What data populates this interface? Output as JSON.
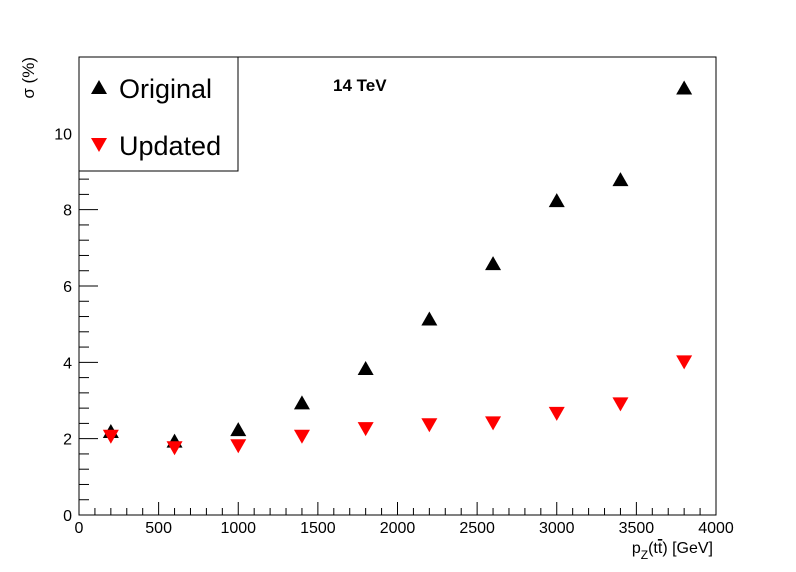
{
  "chart_data": {
    "type": "scatter",
    "annotation": "14 TeV",
    "xlabel": {
      "main": "p",
      "sub": "Z",
      "paren": "(t",
      "tbar": "t",
      "rest": ") [GeV]"
    },
    "ylabel": "σ (%)",
    "xlim": [
      0,
      4000
    ],
    "ylim": [
      0,
      12
    ],
    "xticks": [
      0,
      500,
      1000,
      1500,
      2000,
      2500,
      3000,
      3500,
      4000
    ],
    "xtick_labels": [
      "0",
      "500",
      "1000",
      "1500",
      "2000",
      "2500",
      "3000",
      "3500",
      "4000"
    ],
    "yticks": [
      0,
      2,
      4,
      6,
      8,
      10
    ],
    "ytick_labels": [
      "0",
      "2",
      "4",
      "6",
      "8",
      "10"
    ],
    "grid": false,
    "legend_position": "top-left",
    "x": [
      200,
      600,
      1000,
      1400,
      1800,
      2200,
      2600,
      3000,
      3400,
      3800
    ],
    "series": [
      {
        "name": "Original",
        "marker": "triangle-up",
        "color": "#000000",
        "values": [
          2.2,
          1.95,
          2.25,
          2.95,
          3.85,
          5.15,
          6.6,
          8.25,
          8.8,
          11.2
        ]
      },
      {
        "name": "Updated",
        "marker": "triangle-down",
        "color": "#ff0000",
        "values": [
          2.05,
          1.75,
          1.8,
          2.05,
          2.25,
          2.35,
          2.4,
          2.65,
          2.9,
          4.0
        ]
      }
    ]
  }
}
